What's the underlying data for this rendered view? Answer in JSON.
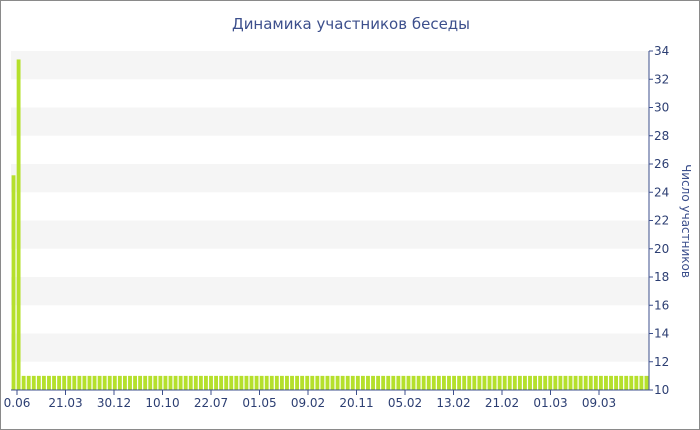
{
  "chart_data": {
    "type": "bar",
    "title": "Динамика участников беседы",
    "ylabel": "Число участников",
    "ylim": [
      10,
      34
    ],
    "y_ticks": [
      10,
      12,
      14,
      16,
      18,
      20,
      22,
      24,
      26,
      28,
      30,
      32,
      34
    ],
    "x_tick_labels": [
      "0.06",
      "21.03",
      "30.12",
      "10.10",
      "22.07",
      "01.05",
      "09.02",
      "20.11",
      "05.02",
      "13.02",
      "21.02",
      "01.03",
      "09.03"
    ],
    "values": [
      25.2,
      33.4,
      11,
      11,
      11,
      11,
      11,
      11,
      11,
      11,
      11,
      11,
      11,
      11,
      11,
      11,
      11,
      11,
      11,
      11,
      11,
      11,
      11,
      11,
      11,
      11,
      11,
      11,
      11,
      11,
      11,
      11,
      11,
      11,
      11,
      11,
      11,
      11,
      11,
      11,
      11,
      11,
      11,
      11,
      11,
      11,
      11,
      11,
      11,
      11,
      11,
      11,
      11,
      11,
      11,
      11,
      11,
      11,
      11,
      11,
      11,
      11,
      11,
      11,
      11,
      11,
      11,
      11,
      11,
      11,
      11,
      11,
      11,
      11,
      11,
      11,
      11,
      11,
      11,
      11,
      11,
      11,
      11,
      11,
      11,
      11,
      11,
      11,
      11,
      11,
      11,
      11,
      11,
      11,
      11,
      11,
      11,
      11,
      11,
      11,
      11,
      11,
      11,
      11,
      11,
      11,
      11,
      11,
      11,
      11,
      11,
      11,
      11,
      11,
      11,
      11,
      11,
      11,
      11,
      11,
      11,
      11,
      11,
      11,
      11,
      11
    ],
    "grid": "alternating horizontal bands",
    "bar_color": "#b5e02c",
    "band_color": "#f5f5f5",
    "axis_color": "#3c4f8c",
    "text_color": "#2c3e72"
  }
}
